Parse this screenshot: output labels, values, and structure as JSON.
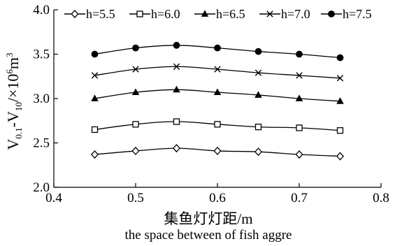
{
  "chart_data": {
    "type": "line",
    "xlabel": "集鱼灯灯距/m",
    "xlabel_en": "the space between of fish aggre",
    "ylabel": {
      "main": "V",
      "sub1": "0.1",
      "mid": "-V",
      "sub2": "10",
      "unit_pre": "/×10",
      "sup": "6",
      "unit_post": "m",
      "sup2": "3"
    },
    "xlim": [
      0.4,
      0.8
    ],
    "ylim": [
      2.0,
      4.0
    ],
    "xticks": [
      "0.4",
      "0.5",
      "0.6",
      "0.7",
      "0.8"
    ],
    "yticks": [
      "2.0",
      "2.5",
      "3.0",
      "3.5",
      "4.0"
    ],
    "x": [
      0.45,
      0.5,
      0.55,
      0.6,
      0.65,
      0.7,
      0.75
    ],
    "legend_position": "top",
    "series": [
      {
        "name": "h=5.5",
        "marker": "diamond",
        "values": [
          2.37,
          2.41,
          2.44,
          2.41,
          2.4,
          2.37,
          2.35
        ]
      },
      {
        "name": "h=6.0",
        "marker": "square",
        "values": [
          2.65,
          2.71,
          2.74,
          2.71,
          2.68,
          2.67,
          2.64
        ]
      },
      {
        "name": "h=6.5",
        "marker": "triangle",
        "values": [
          3.0,
          3.07,
          3.1,
          3.07,
          3.04,
          3.0,
          2.97
        ]
      },
      {
        "name": "h=7.0",
        "marker": "x",
        "values": [
          3.26,
          3.33,
          3.36,
          3.33,
          3.29,
          3.26,
          3.23
        ]
      },
      {
        "name": "h=7.5",
        "marker": "circle",
        "values": [
          3.5,
          3.57,
          3.6,
          3.57,
          3.53,
          3.5,
          3.46
        ]
      }
    ],
    "grid": false,
    "line_color": "#000000"
  }
}
